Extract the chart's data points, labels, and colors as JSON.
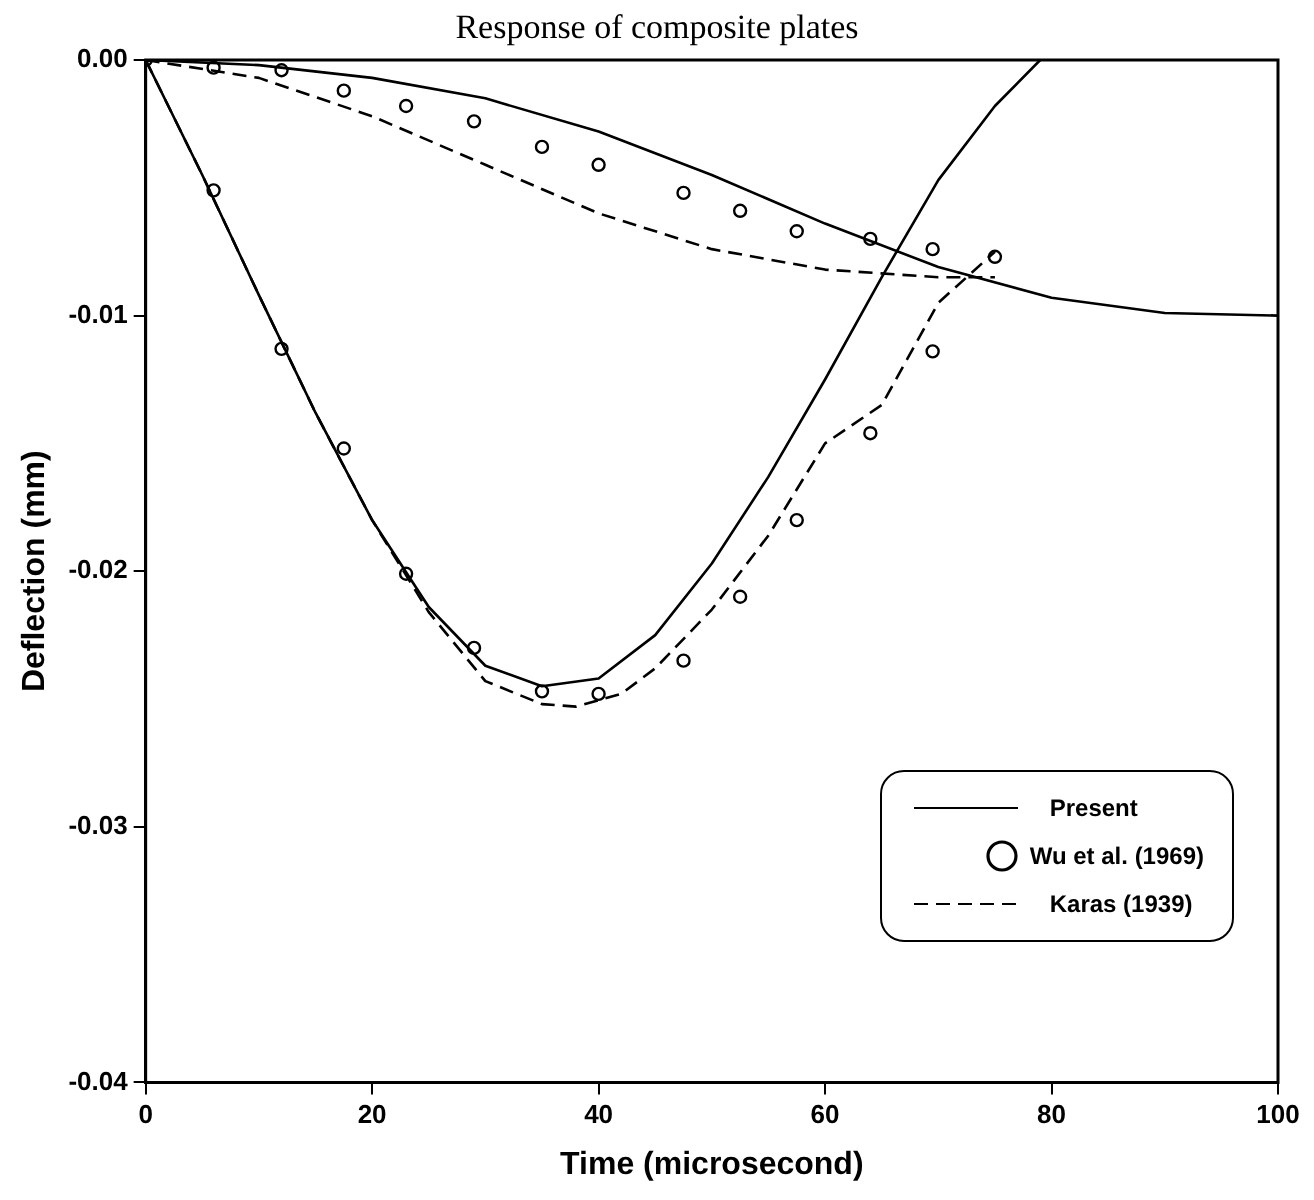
{
  "chart_data": {
    "type": "line",
    "title": "Response of composite plates",
    "xlabel": "Time (microsecond)",
    "ylabel": "Deflection (mm)",
    "xlim": [
      0,
      100
    ],
    "xticks": [
      0,
      20,
      40,
      60,
      80,
      100
    ],
    "ylim": [
      -0.04,
      0
    ],
    "yticks": [
      {
        "value": 0,
        "label": "0.00"
      },
      {
        "value": -0.01,
        "label": "-0.01"
      },
      {
        "value": -0.02,
        "label": "-0.02"
      },
      {
        "value": -0.03,
        "label": "-0.03"
      },
      {
        "value": -0.04,
        "label": "-0.04"
      }
    ],
    "grid": false,
    "legend": "bottom right",
    "series": [
      {
        "name": "Present",
        "color": "#000000",
        "line_style": "solid",
        "marker": "none",
        "x": [
          0,
          10,
          20,
          30,
          40,
          50,
          60,
          70,
          80,
          90,
          100,
          null,
          0,
          5,
          10,
          15,
          20,
          25,
          30,
          35,
          40,
          45,
          50,
          55,
          60,
          65,
          70,
          75,
          79
        ],
        "values": [
          0,
          -0.0002,
          -0.0007,
          -0.0015,
          -0.0028,
          -0.0045,
          -0.0064,
          -0.0081,
          -0.0093,
          -0.0099,
          -0.01,
          null,
          0,
          -0.0045,
          -0.0092,
          -0.0138,
          -0.018,
          -0.0214,
          -0.0237,
          -0.0245,
          -0.0242,
          -0.0225,
          -0.0197,
          -0.0163,
          -0.0125,
          -0.0085,
          -0.0047,
          -0.0018,
          0
        ]
      },
      {
        "name": "Wu et al. (1969)",
        "type": "scatter",
        "color": "#000000",
        "marker": "circle",
        "x": [
          0,
          6,
          12,
          17.5,
          23,
          29,
          35,
          40,
          47.5,
          52.5,
          57.5,
          64,
          69.5,
          75,
          null,
          6,
          12,
          17.5,
          23,
          29,
          35,
          40,
          47.5,
          52.5,
          57.5,
          64,
          69.5
        ],
        "values": [
          0,
          -0.0003,
          -0.0004,
          -0.0012,
          -0.0018,
          -0.0024,
          -0.0034,
          -0.0041,
          -0.0052,
          -0.0059,
          -0.0067,
          -0.007,
          -0.0074,
          -0.0077,
          null,
          -0.0051,
          -0.0113,
          -0.0152,
          -0.0201,
          -0.023,
          -0.0247,
          -0.0248,
          -0.0235,
          -0.021,
          -0.018,
          -0.0146,
          -0.0114
        ]
      },
      {
        "name": "Karas (1939)",
        "color": "#000000",
        "line_style": "dashed",
        "marker": "none",
        "x": [
          0,
          10,
          20,
          30,
          40,
          50,
          60,
          70,
          75,
          null,
          0,
          5,
          10,
          15,
          20,
          25,
          30,
          35,
          38,
          42,
          45,
          50,
          55,
          60,
          65,
          70,
          75
        ],
        "values": [
          0,
          -0.0007,
          -0.0022,
          -0.0041,
          -0.006,
          -0.0074,
          -0.0082,
          -0.0085,
          -0.0085,
          null,
          0,
          -0.0045,
          -0.0092,
          -0.0138,
          -0.018,
          -0.0216,
          -0.0243,
          -0.0252,
          -0.0253,
          -0.0248,
          -0.0238,
          -0.0215,
          -0.0186,
          -0.015,
          -0.0135,
          -0.0095,
          -0.0075
        ]
      }
    ]
  }
}
